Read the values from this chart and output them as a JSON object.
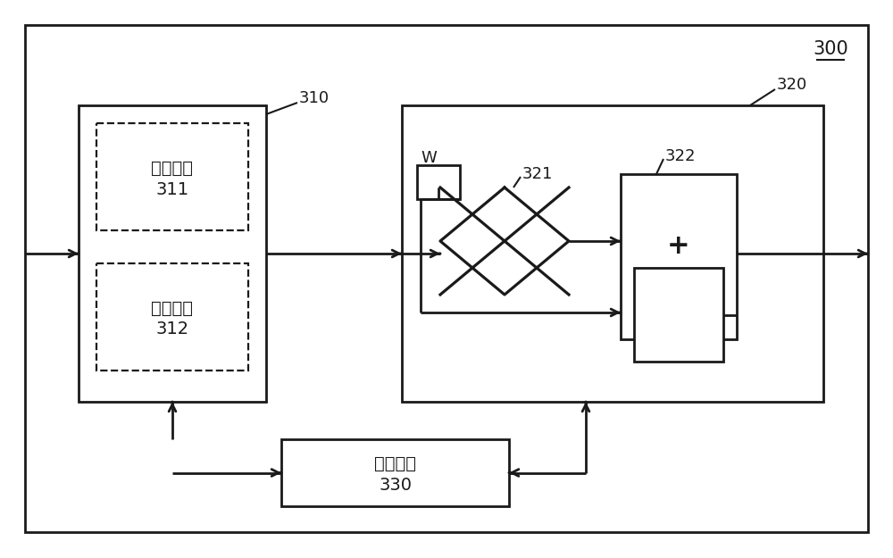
{
  "fig_width": 10.0,
  "fig_height": 6.25,
  "dpi": 100,
  "bg_color": "#ffffff",
  "line_color": "#1a1a1a",
  "label_300": "300",
  "label_310": "310",
  "label_320": "320",
  "label_321": "321",
  "label_322": "322",
  "label_W": "W",
  "label_311_line1": "乘法电路",
  "label_311_line2": "311",
  "label_312_line1": "乘加电路",
  "label_312_line2": "312",
  "label_330_line1": "存储电路",
  "label_330_line2": "330",
  "label_plus": "+",
  "font_size_chinese": 14,
  "font_size_number": 13,
  "font_size_plus": 22,
  "font_size_W": 13,
  "font_size_300": 15
}
